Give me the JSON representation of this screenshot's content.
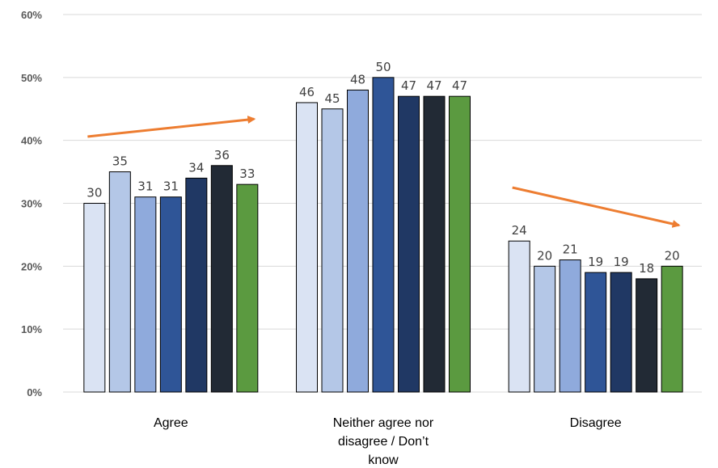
{
  "chart_data": {
    "type": "bar",
    "categories": [
      [
        "Agree"
      ],
      [
        "Neither agree nor",
        "disagree / Don’t",
        "know"
      ],
      [
        "Disagree"
      ]
    ],
    "series": [
      {
        "values": [
          30,
          46,
          24
        ],
        "labels": [
          "30",
          "46",
          "24"
        ],
        "color": "#dae3f3"
      },
      {
        "values": [
          35,
          45,
          20
        ],
        "labels": [
          "35",
          "45",
          "20"
        ],
        "color": "#b4c7e7"
      },
      {
        "values": [
          31,
          48,
          21
        ],
        "labels": [
          "31",
          "48",
          "21"
        ],
        "color": "#8faadc"
      },
      {
        "values": [
          31,
          50,
          19
        ],
        "labels": [
          "31",
          "50",
          "19"
        ],
        "color": "#2f5597"
      },
      {
        "values": [
          34,
          47,
          19
        ],
        "labels": [
          "34",
          "47",
          "19"
        ],
        "color": "#203864"
      },
      {
        "values": [
          36,
          47,
          18
        ],
        "labels": [
          "36",
          "47",
          "18"
        ],
        "color": "#222a35"
      },
      {
        "values": [
          33,
          47,
          20
        ],
        "labels": [
          "33",
          "47",
          "20"
        ],
        "color": "#5b9a40"
      }
    ],
    "yticks": [
      "0%",
      "10%",
      "20%",
      "30%",
      "40%",
      "50%",
      "60%"
    ],
    "ylim": [
      0,
      60
    ],
    "grid": true,
    "legend": "none",
    "annotations": [
      {
        "type": "arrow",
        "direction": "up",
        "category": "Agree",
        "color": "#ed7d31"
      },
      {
        "type": "arrow",
        "direction": "down",
        "category": "Disagree",
        "color": "#ed7d31"
      }
    ]
  }
}
